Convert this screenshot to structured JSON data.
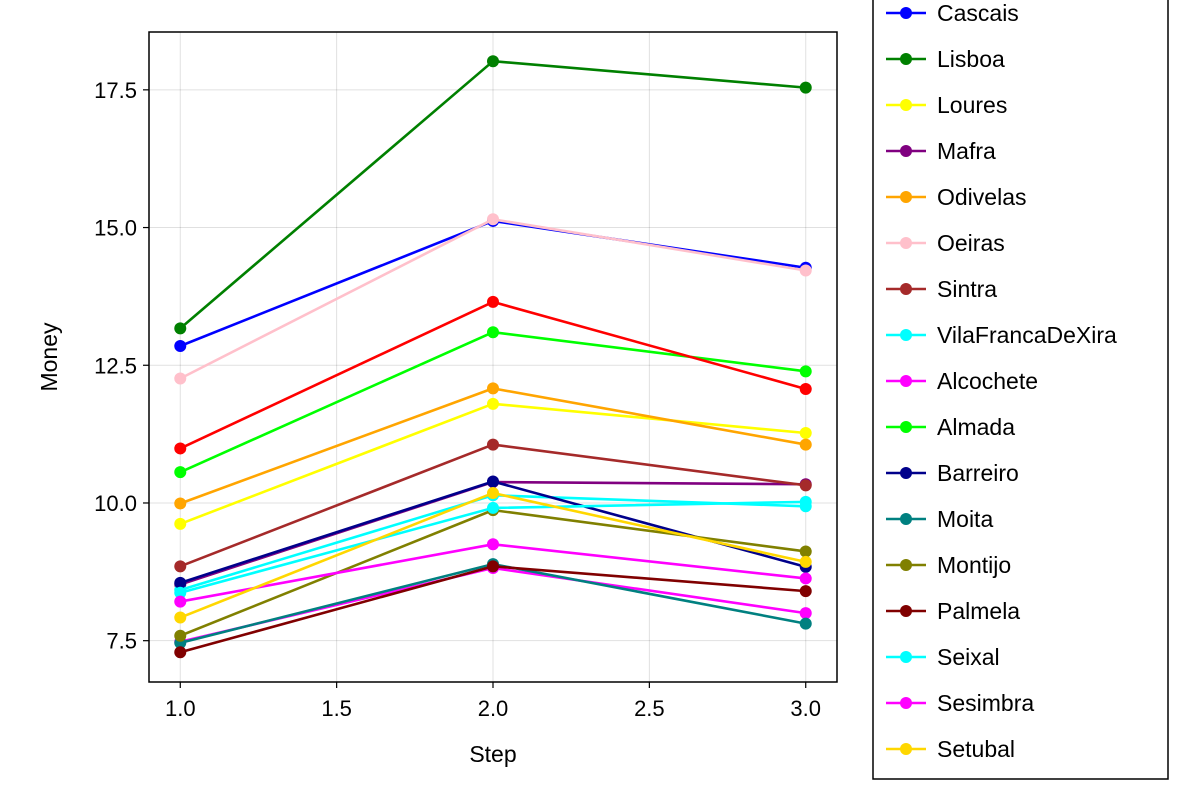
{
  "chart_data": {
    "type": "line",
    "xlabel": "Step",
    "ylabel": "Money",
    "x": [
      1.0,
      2.0,
      3.0
    ],
    "xlim": [
      0.9,
      3.1
    ],
    "ylim": [
      6.75,
      18.55
    ],
    "xticks": [
      1.0,
      1.5,
      2.0,
      2.5,
      3.0
    ],
    "xtick_labels": [
      "1.0",
      "1.5",
      "2.0",
      "2.5",
      "3.0"
    ],
    "yticks": [
      7.5,
      10.0,
      12.5,
      15.0,
      17.5
    ],
    "ytick_labels": [
      "7.5",
      "10.0",
      "12.5",
      "15.0",
      "17.5"
    ],
    "grid": true,
    "legend_position": "right",
    "series": [
      {
        "name": "Cascais",
        "color": "#0000ff",
        "values": [
          12.85,
          15.12,
          14.27
        ]
      },
      {
        "name": "Lisboa",
        "color": "#008000",
        "values": [
          13.17,
          18.02,
          17.54
        ]
      },
      {
        "name": "Loures",
        "color": "#ffff00",
        "values": [
          9.62,
          11.8,
          11.27
        ]
      },
      {
        "name": "Mafra",
        "color": "#800080",
        "values": [
          8.52,
          10.38,
          10.34
        ]
      },
      {
        "name": "Odivelas",
        "color": "#ffa500",
        "values": [
          9.99,
          12.08,
          11.06
        ]
      },
      {
        "name": "Oeiras",
        "color": "#ffc0cb",
        "values": [
          12.26,
          15.15,
          14.22
        ]
      },
      {
        "name": "Sintra",
        "color": "#a52a2a",
        "values": [
          8.85,
          11.06,
          10.32
        ]
      },
      {
        "name": "VilaFrancaDeXira",
        "color": "#00ffff",
        "values": [
          8.42,
          10.14,
          9.94
        ]
      },
      {
        "name": "Alcochete",
        "color": "#ff00ff",
        "values": [
          7.48,
          8.82,
          8.0
        ]
      },
      {
        "name": "Almada",
        "color": "#00ff00",
        "values": [
          10.56,
          13.1,
          12.39
        ]
      },
      {
        "name": "Barreiro",
        "color": "#00008b",
        "values": [
          8.55,
          10.39,
          8.84
        ]
      },
      {
        "name": "Moita",
        "color": "#008080",
        "values": [
          7.46,
          8.89,
          7.81
        ]
      },
      {
        "name": "Montijo",
        "color": "#808000",
        "values": [
          7.59,
          9.87,
          9.12
        ]
      },
      {
        "name": "Palmela",
        "color": "#800000",
        "values": [
          7.29,
          8.85,
          8.4
        ]
      },
      {
        "name": "Seixal",
        "color": "#00ffff",
        "values": [
          8.37,
          9.91,
          10.02
        ]
      },
      {
        "name": "Sesimbra",
        "color": "#ff00ff",
        "values": [
          8.21,
          9.25,
          8.63
        ]
      },
      {
        "name": "Setubal",
        "color": "#ffd700",
        "values": [
          7.92,
          10.18,
          8.93
        ]
      },
      {
        "name": "",
        "color": "#ff0000",
        "values": [
          10.99,
          13.65,
          12.07
        ]
      }
    ]
  }
}
